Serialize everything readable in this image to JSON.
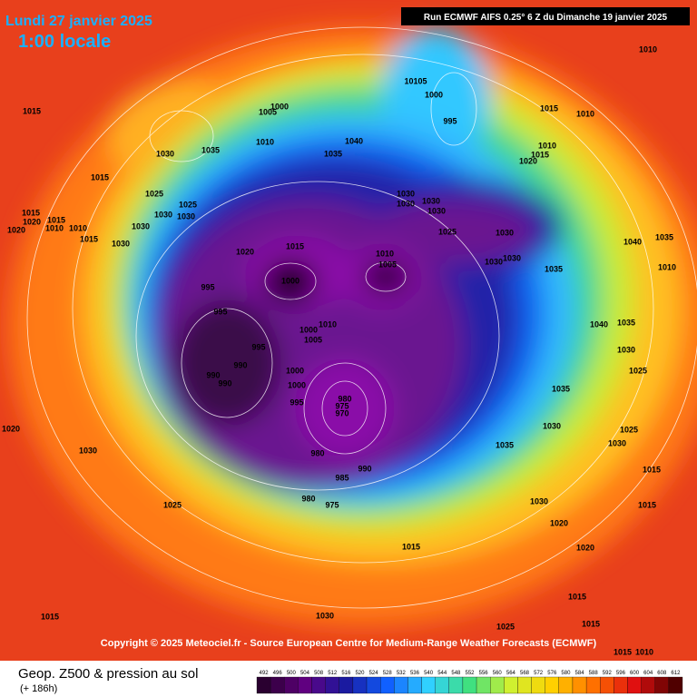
{
  "header": {
    "date": "Lundi 27 janvier 2025",
    "time": "1:00 locale",
    "run": "Run ECMWF AIFS 0.25° 6 Z du Dimanche 19 janvier 2025"
  },
  "copyright": "Copyright © 2025 Meteociel.fr - Source European Centre for Medium-Range Weather Forecasts (ECMWF)",
  "footer": {
    "title": "Geop. Z500 & pression au sol",
    "lead": "(+ 186h)"
  },
  "legend": {
    "labels": [
      492,
      496,
      500,
      504,
      508,
      512,
      516,
      520,
      524,
      528,
      532,
      536,
      540,
      544,
      548,
      552,
      556,
      560,
      564,
      568,
      572,
      576,
      580,
      584,
      588,
      592,
      596,
      600,
      604,
      608,
      612
    ]
  },
  "pressure_labels": [
    "1010",
    "1015",
    "1030",
    "1035",
    "1015",
    "1010",
    "1005",
    "1000",
    "10105",
    "1000",
    "995",
    "1015",
    "1010",
    "1040",
    "1035",
    "1010",
    "1015",
    "1020",
    "1025",
    "1025",
    "1030",
    "1030",
    "1015",
    "1020",
    "1015",
    "1010",
    "1010",
    "1020",
    "1030",
    "1015",
    "1030",
    "1020",
    "1015",
    "1030",
    "1030",
    "1030",
    "1030",
    "1025",
    "1030",
    "1010",
    "1005",
    "1000",
    "995",
    "995",
    "1035",
    "1040",
    "1035",
    "1010",
    "1030",
    "1030",
    "1010",
    "1005",
    "1000",
    "995",
    "990",
    "990",
    "990",
    "1000",
    "1000",
    "995",
    "980",
    "975",
    "970",
    "980",
    "985",
    "990",
    "980",
    "975",
    "1020",
    "1030",
    "1025",
    "1035",
    "1030",
    "1030",
    "1020",
    "1020",
    "1015",
    "1015",
    "1015",
    "1015",
    "1015",
    "1030",
    "1025",
    "1015",
    "1015",
    "1010",
    "1035",
    "1030",
    "1035",
    "1025",
    "1025",
    "1030",
    "1040"
  ]
}
